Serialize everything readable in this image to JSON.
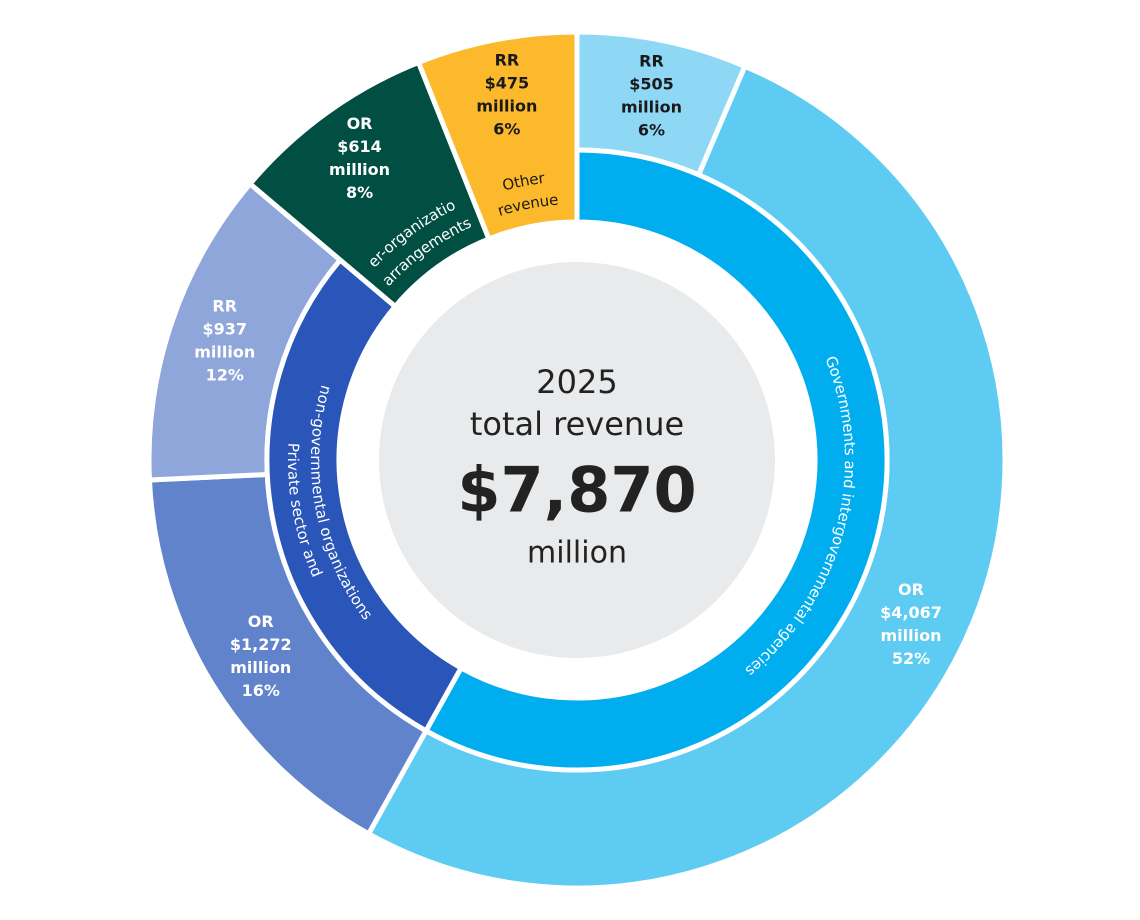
{
  "chart_data": {
    "type": "sunburst",
    "center": {
      "year": "2025",
      "label": "total revenue",
      "total_label": "$7,870",
      "unit": "million"
    },
    "groups": [
      {
        "name": [
          "Governments and intergovernmental agencies"
        ],
        "color": "#00aeef",
        "children": [
          {
            "label": "RR",
            "value": 505,
            "value_label": [
              "$505",
              "million"
            ],
            "percent": 6,
            "percent_label": "6%",
            "color": "#8ed8f6"
          },
          {
            "label": "OR",
            "value": 4067,
            "value_label": [
              "$4,067",
              "million"
            ],
            "percent": 52,
            "percent_label": "52%",
            "color": "#5ecbf2"
          }
        ]
      },
      {
        "name": [
          "Private sector and",
          "non-governmental organizations"
        ],
        "color": "#2a55b9",
        "children": [
          {
            "label": "OR",
            "value": 1272,
            "value_label": [
              "$1,272",
              "million"
            ],
            "percent": 16,
            "percent_label": "16%",
            "color": "#6183cc"
          },
          {
            "label": "RR",
            "value": 937,
            "value_label": [
              "$937",
              "million"
            ],
            "percent": 12,
            "percent_label": "12%",
            "color": "#8fa6da"
          }
        ]
      },
      {
        "name": [
          "Inter-organizational",
          "arrangements"
        ],
        "children": [
          {
            "label": "OR",
            "value": 614,
            "value_label": [
              "$614",
              "million"
            ],
            "percent": 8,
            "percent_label": "8%",
            "color": "#004f42"
          }
        ]
      },
      {
        "name": [
          "Other",
          "revenue"
        ],
        "children": [
          {
            "label": "RR",
            "value": 475,
            "value_label": [
              "$475",
              "million"
            ],
            "percent": 6,
            "percent_label": "6%",
            "color": "#fbb92b"
          }
        ]
      }
    ]
  }
}
